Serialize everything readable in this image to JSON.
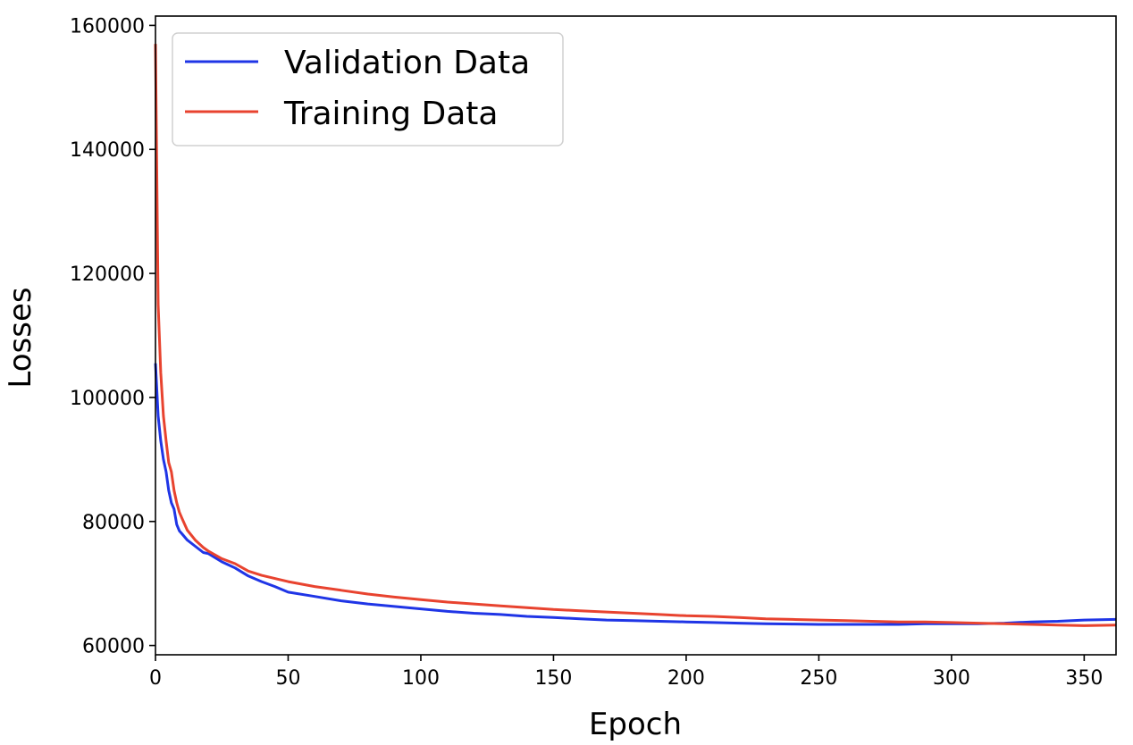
{
  "chart_data": {
    "type": "line",
    "title": "",
    "xlabel": "Epoch",
    "ylabel": "Losses",
    "xlim": [
      0,
      362
    ],
    "ylim": [
      58500,
      161500
    ],
    "xticks": [
      0,
      50,
      100,
      150,
      200,
      250,
      300,
      350
    ],
    "yticks": [
      60000,
      80000,
      100000,
      120000,
      140000,
      160000
    ],
    "grid": false,
    "legend_position": "top-left",
    "series": [
      {
        "name": "Validation Data",
        "color": "#1f35e6",
        "x": [
          0,
          1,
          2,
          3,
          4,
          5,
          6,
          7,
          8,
          9,
          10,
          12,
          15,
          18,
          20,
          25,
          30,
          35,
          40,
          45,
          50,
          60,
          70,
          80,
          90,
          100,
          110,
          120,
          130,
          140,
          150,
          160,
          170,
          180,
          190,
          200,
          210,
          220,
          230,
          240,
          250,
          260,
          270,
          280,
          290,
          300,
          310,
          320,
          330,
          340,
          350,
          362
        ],
        "y": [
          105500,
          97000,
          93000,
          90000,
          88000,
          85000,
          83000,
          82000,
          79500,
          78500,
          78000,
          77000,
          76000,
          75000,
          74800,
          73500,
          72500,
          71200,
          70300,
          69500,
          68600,
          67900,
          67200,
          66700,
          66300,
          65900,
          65500,
          65200,
          65000,
          64700,
          64500,
          64300,
          64100,
          64000,
          63900,
          63800,
          63700,
          63600,
          63500,
          63450,
          63400,
          63400,
          63400,
          63400,
          63500,
          63500,
          63500,
          63600,
          63800,
          63900,
          64100,
          64200
        ]
      },
      {
        "name": "Training Data",
        "color": "#e8432f",
        "x": [
          0,
          1,
          2,
          3,
          4,
          5,
          6,
          7,
          8,
          9,
          10,
          12,
          15,
          18,
          20,
          25,
          30,
          35,
          40,
          45,
          50,
          60,
          70,
          80,
          90,
          100,
          110,
          120,
          130,
          140,
          150,
          160,
          170,
          180,
          190,
          200,
          210,
          220,
          230,
          240,
          250,
          260,
          270,
          280,
          290,
          300,
          310,
          320,
          330,
          340,
          350,
          362
        ],
        "y": [
          157000,
          115000,
          104000,
          97000,
          93000,
          89500,
          88000,
          85000,
          83000,
          81500,
          80500,
          78600,
          77000,
          75800,
          75200,
          74000,
          73200,
          72000,
          71300,
          70800,
          70300,
          69500,
          68900,
          68300,
          67800,
          67400,
          67000,
          66700,
          66400,
          66100,
          65800,
          65600,
          65400,
          65200,
          65000,
          64800,
          64700,
          64500,
          64300,
          64200,
          64100,
          64000,
          63900,
          63800,
          63800,
          63700,
          63600,
          63500,
          63400,
          63300,
          63200,
          63300
        ]
      }
    ]
  }
}
